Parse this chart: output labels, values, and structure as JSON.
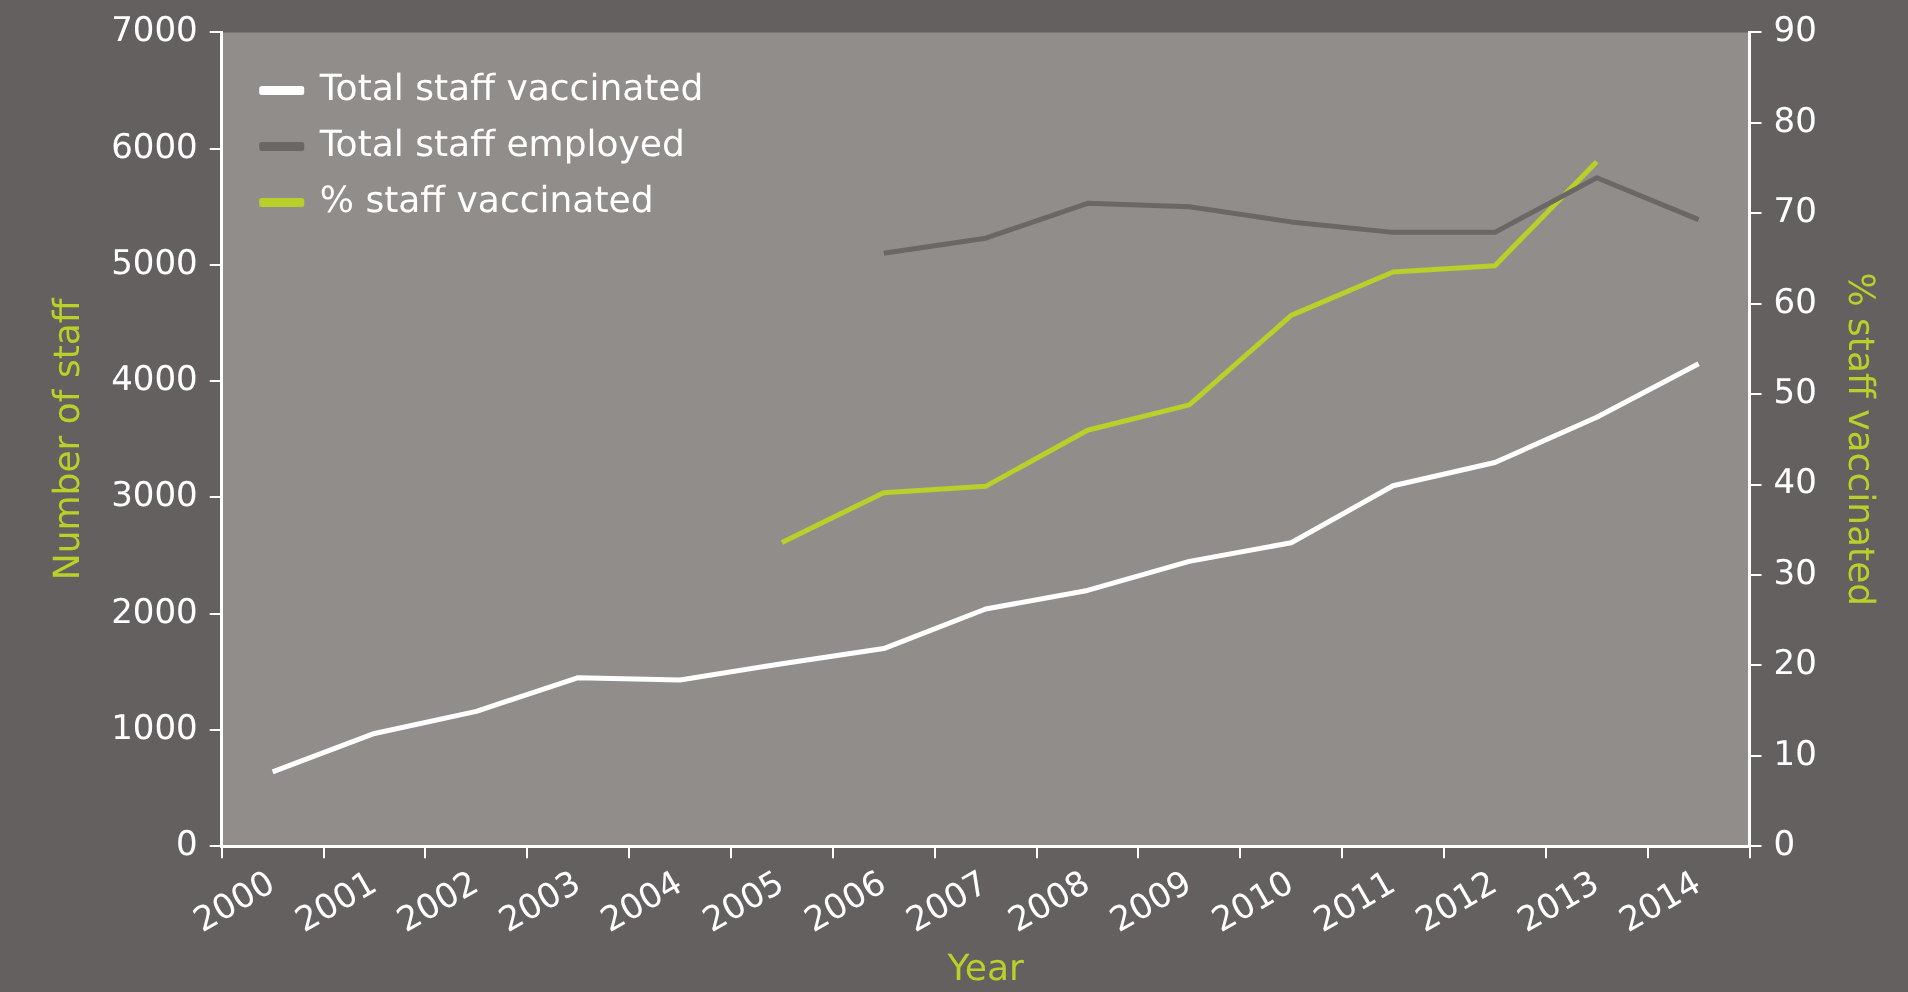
{
  "chart_data": {
    "type": "line",
    "xlabel": "Year",
    "ylabel": "Number of staff",
    "y2label": "% staff vaccinated",
    "categories": [
      "2000",
      "2001",
      "2002",
      "2003",
      "2004",
      "2005",
      "2006",
      "2007",
      "2008",
      "2009",
      "2010",
      "2011",
      "2012",
      "2013",
      "2014"
    ],
    "series": [
      {
        "name": "Total staff vaccinated",
        "color": "#ffffff",
        "values": [
          640,
          970,
          1160,
          1450,
          1430,
          1570,
          1700,
          2040,
          2200,
          2450,
          2610,
          3100,
          3300,
          3690,
          4150
        ]
      },
      {
        "name": "Total staff employed",
        "color": "#6b6764",
        "values": [
          null,
          null,
          null,
          null,
          null,
          null,
          5100,
          5230,
          5530,
          5500,
          5370,
          5280,
          5280,
          5750,
          5390
        ]
      },
      {
        "name": "% staff vaccinated",
        "color": "#b9cf2a",
        "axis": "y2",
        "values": [
          null,
          null,
          null,
          null,
          null,
          33.6,
          39.1,
          39.8,
          46,
          48.8,
          58.7,
          63.5,
          64.2,
          75.7,
          null
        ]
      }
    ],
    "ylim": [
      0,
      7000
    ],
    "yticks": [
      0,
      1000,
      2000,
      3000,
      4000,
      5000,
      6000,
      7000
    ],
    "y2lim": [
      0,
      90
    ],
    "y2ticks": [
      0,
      10,
      20,
      30,
      40,
      50,
      60,
      70,
      80,
      90
    ],
    "grid": false,
    "legend": "top left",
    "marker": "none",
    "line_style": "solid"
  }
}
